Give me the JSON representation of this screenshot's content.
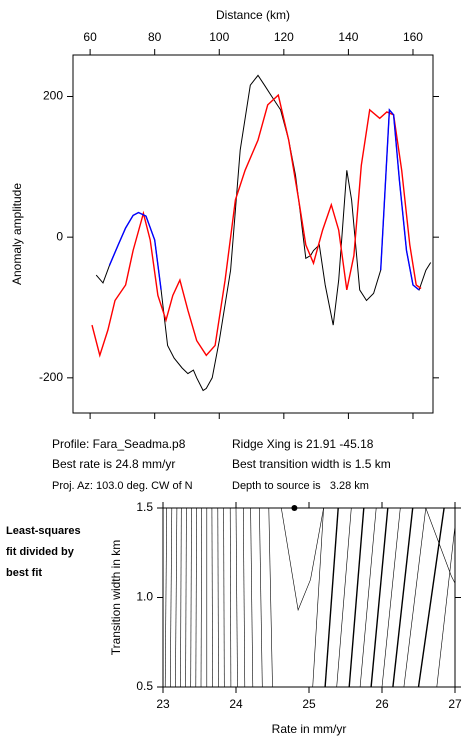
{
  "chart_data": [
    {
      "type": "line",
      "x_label": "Distance (km)",
      "y_label": "Anomaly amplitude",
      "xlim": [
        54.7,
        166.2
      ],
      "xticks": [
        60,
        80,
        100,
        120,
        140,
        160
      ],
      "ylim": [
        -250,
        259
      ],
      "yticks": [
        -200,
        0,
        200
      ],
      "series": [
        {
          "color": "#000000",
          "x": [
            61.9,
            64,
            66,
            68.7,
            71,
            73.3,
            75,
            77.3,
            80,
            82,
            84,
            86,
            88.5,
            90.3,
            92,
            93,
            95,
            96,
            97.8,
            100,
            103.5,
            106.5,
            109.6,
            112,
            114,
            116,
            119,
            121.5,
            123.6,
            125,
            126.8,
            128.3,
            129.2,
            131,
            132.8,
            135.3,
            137,
            139.5,
            141,
            143.5,
            145.6,
            147.8,
            150,
            152.7,
            154,
            155.8,
            158,
            160,
            161.9,
            164,
            165.5
          ],
          "values": [
            -54,
            -65,
            -40,
            -11,
            13,
            31,
            35,
            30,
            -4,
            -75,
            -154,
            -172,
            -186,
            -194,
            -189,
            -200,
            -218,
            -215,
            -200,
            -147,
            -47,
            124,
            216,
            230,
            216,
            202,
            181,
            138,
            88,
            38,
            -30,
            -26,
            -19,
            -11,
            -68,
            -125,
            -61,
            95,
            53,
            -75,
            -90,
            -80,
            -47,
            181,
            174,
            81,
            -19,
            -68,
            -75,
            -47,
            -36
          ]
        },
        {
          "color": "#ff0000",
          "x": [
            60.6,
            63,
            65.5,
            67.7,
            71,
            73.3,
            76.5,
            78.6,
            81,
            83.5,
            85.6,
            87.8,
            90.3,
            93,
            96,
            98.7,
            101.8,
            105,
            108,
            112,
            115,
            118.3,
            121.5,
            124.6,
            126.8,
            129.2,
            132,
            134.7,
            137,
            139.5,
            141.7,
            144,
            146.6,
            149.7,
            151.9,
            154,
            156.5,
            159,
            161,
            162.5
          ],
          "values": [
            -125,
            -168,
            -132,
            -90,
            -68,
            -19,
            34,
            -4,
            -83,
            -118,
            -83,
            -61,
            -104,
            -147,
            -168,
            -154,
            -61,
            53,
            95,
            138,
            188,
            202,
            138,
            53,
            -11,
            -37,
            10,
            46,
            10,
            -75,
            -26,
            102,
            181,
            169,
            178,
            174,
            95,
            -11,
            -68,
            -73
          ]
        },
        {
          "color": "#0000ff",
          "x": [
            66,
            68.7,
            71,
            73.3,
            75,
            77.3,
            80,
            82,
            100,
            150,
            152.7,
            154,
            155.8,
            158,
            160,
            161.9
          ],
          "values": [
            -40,
            -11,
            13,
            31,
            35,
            30,
            -4,
            -75,
            null,
            -47,
            181,
            174,
            81,
            -19,
            -68,
            -75
          ]
        }
      ]
    },
    {
      "type": "contour",
      "x_label": "Rate in mm/yr",
      "y_label": "Transition width in km",
      "xlim": [
        23,
        27
      ],
      "xticks": [
        23,
        24,
        25,
        26,
        27
      ],
      "ylim": [
        0.5,
        1.5
      ],
      "yticks": [
        {
          "value": 0.5,
          "label": "0.5"
        },
        {
          "value": 1,
          "label": "1.0"
        },
        {
          "value": 1.5,
          "label": "1.5"
        }
      ],
      "contours": [
        {
          "x": [
            23.03,
            23.05
          ],
          "y": [
            0.5,
            1.5
          ]
        },
        {
          "x": [
            23.1,
            23.12
          ],
          "y": [
            0.5,
            1.5
          ]
        },
        {
          "x": [
            23.17,
            23.19
          ],
          "y": [
            0.5,
            1.5
          ]
        },
        {
          "x": [
            23.24,
            23.25
          ],
          "y": [
            0.5,
            1.5
          ]
        },
        {
          "x": [
            23.31,
            23.32
          ],
          "y": [
            0.5,
            1.5
          ]
        },
        {
          "x": [
            23.38,
            23.39
          ],
          "y": [
            0.5,
            1.5
          ]
        },
        {
          "x": [
            23.45,
            23.46
          ],
          "y": [
            0.5,
            1.5
          ]
        },
        {
          "x": [
            23.52,
            23.53
          ],
          "y": [
            0.5,
            1.5
          ]
        },
        {
          "x": [
            23.6,
            23.6
          ],
          "y": [
            0.5,
            1.5
          ]
        },
        {
          "x": [
            23.68,
            23.67
          ],
          "y": [
            0.5,
            1.5
          ]
        },
        {
          "x": [
            23.76,
            23.75
          ],
          "y": [
            0.5,
            1.5
          ]
        },
        {
          "x": [
            23.84,
            23.83
          ],
          "y": [
            0.5,
            1.5
          ]
        },
        {
          "x": [
            23.93,
            23.92
          ],
          "y": [
            0.5,
            1.5
          ]
        },
        {
          "x": [
            24.02,
            24.0
          ],
          "y": [
            0.5,
            1.5
          ]
        },
        {
          "x": [
            24.12,
            24.1
          ],
          "y": [
            0.5,
            1.5
          ]
        },
        {
          "x": [
            24.23,
            24.2
          ],
          "y": [
            0.5,
            1.5
          ]
        },
        {
          "x": [
            24.36,
            24.32
          ],
          "y": [
            0.5,
            1.5
          ]
        },
        {
          "x": [
            24.5,
            24.45
          ],
          "y": [
            0.5,
            1.5
          ]
        },
        {
          "x": [
            24.62,
            24.85,
            25.02,
            25.2
          ],
          "y": [
            1.5,
            0.93,
            1.1,
            1.5
          ]
        },
        {
          "x": [
            25.05,
            25.2
          ],
          "y": [
            0.5,
            1.5
          ]
        },
        {
          "x": [
            25.22,
            25.4
          ],
          "y": [
            0.5,
            1.5
          ],
          "bold": true
        },
        {
          "x": [
            25.38,
            25.58
          ],
          "y": [
            0.5,
            1.5
          ]
        },
        {
          "x": [
            25.55,
            25.75
          ],
          "y": [
            0.5,
            1.5
          ],
          "bold": true
        },
        {
          "x": [
            25.7,
            25.92
          ],
          "y": [
            0.5,
            1.5
          ]
        },
        {
          "x": [
            25.85,
            26.08
          ],
          "y": [
            0.5,
            1.5
          ],
          "bold": true
        },
        {
          "x": [
            26.0,
            26.25
          ],
          "y": [
            0.5,
            1.5
          ]
        },
        {
          "x": [
            26.15,
            26.42
          ],
          "y": [
            0.5,
            1.5
          ],
          "bold": true
        },
        {
          "x": [
            26.3,
            26.6
          ],
          "y": [
            0.5,
            1.5
          ]
        },
        {
          "x": [
            26.5,
            26.85
          ],
          "y": [
            0.5,
            1.5
          ],
          "bold": true
        },
        {
          "x": [
            26.75,
            27.0
          ],
          "y": [
            0.5,
            1.4
          ]
        },
        {
          "x": [
            26.6,
            26.95,
            27
          ],
          "y": [
            1.5,
            1.12,
            1.08
          ]
        }
      ],
      "best_fit": {
        "x": 24.8,
        "y": 1.5
      }
    }
  ],
  "info": {
    "profile": "Profile: Fara_Seadma.p8",
    "ridge": "Ridge Xing is 21.91 -45.18",
    "rate": "Best rate is 24.8 mm/yr",
    "width": "Best transition width is 1.5 km",
    "azimuth": "Proj. Az: 103.0 deg. CW of N",
    "depth": "Depth to source is   3.28 km"
  },
  "panel_label": [
    "Least-squares",
    "fit divided by",
    "best fit"
  ]
}
